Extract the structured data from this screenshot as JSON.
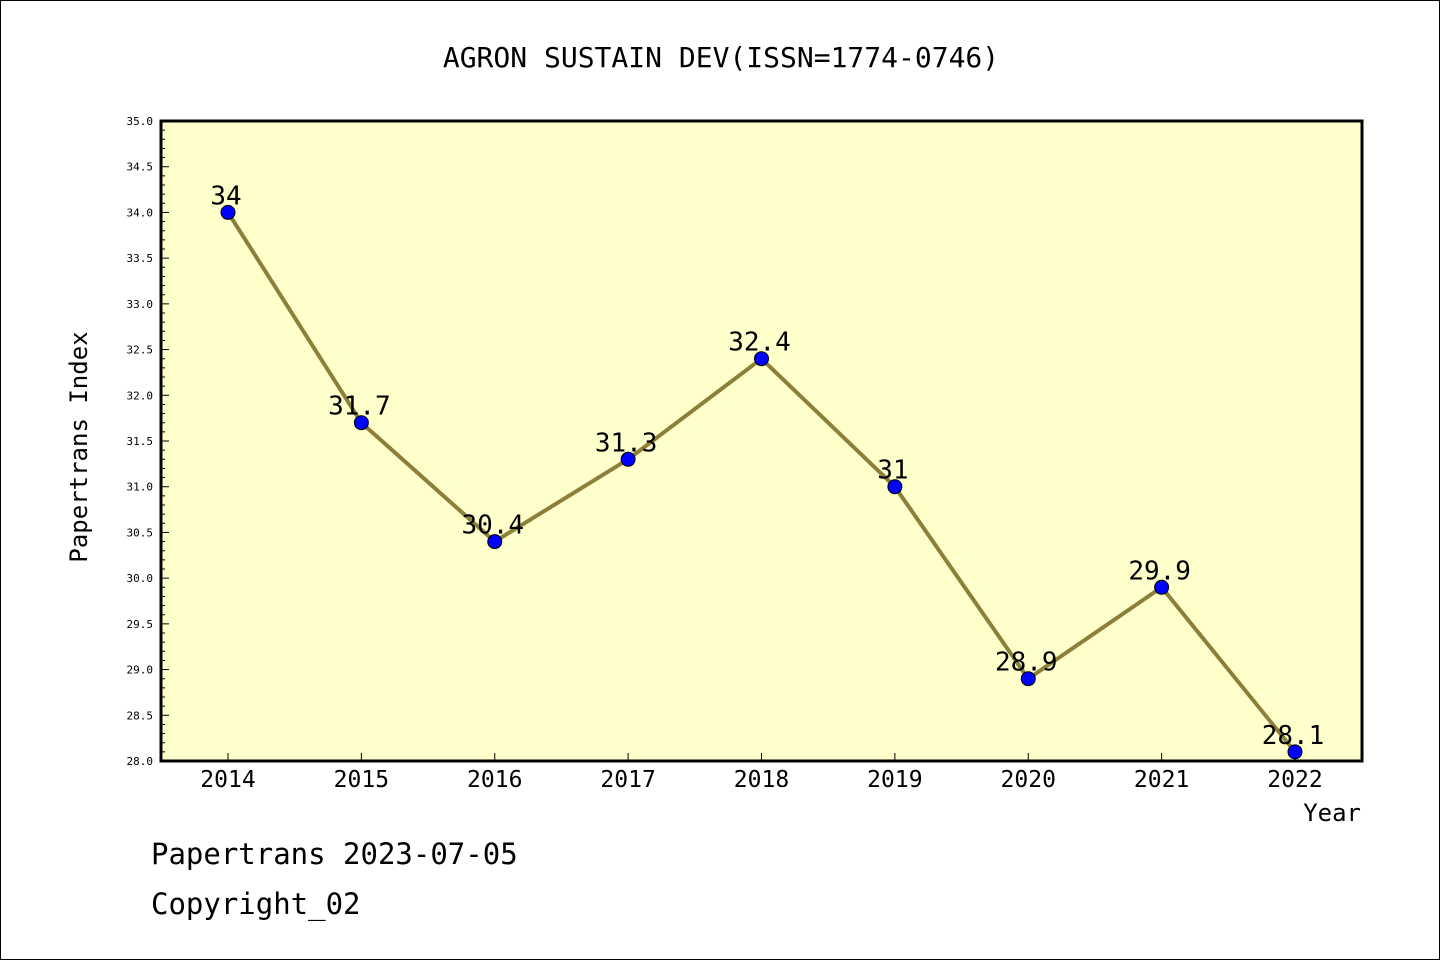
{
  "chart_data": {
    "type": "line",
    "title": "AGRON SUSTAIN DEV(ISSN=1774-0746)",
    "xlabel": "Year",
    "ylabel": "Papertrans Index",
    "categories": [
      "2014",
      "2015",
      "2016",
      "2017",
      "2018",
      "2019",
      "2020",
      "2021",
      "2022"
    ],
    "series": [
      {
        "values": [
          34,
          31.7,
          30.4,
          31.3,
          32.4,
          31,
          28.9,
          29.9,
          28.1
        ],
        "data_labels": [
          "34",
          "31.7",
          "30.4",
          "31.3",
          "32.4",
          "31",
          "28.9",
          "29.9",
          "28.1"
        ]
      }
    ],
    "ylim": [
      28.0,
      35.0
    ],
    "yticks": [
      "28.0",
      "28.5",
      "29.0",
      "29.5",
      "30.0",
      "30.5",
      "31.0",
      "31.5",
      "32.0",
      "32.5",
      "33.0",
      "33.5",
      "34.0",
      "34.5",
      "35.0"
    ],
    "grid": false,
    "colors": {
      "plot_background": "#ffffcc",
      "line": "#8c7f3a",
      "marker": "#0000ff"
    }
  },
  "footer": {
    "line1": "Papertrans 2023-07-05",
    "line2": "Copyright_02"
  }
}
